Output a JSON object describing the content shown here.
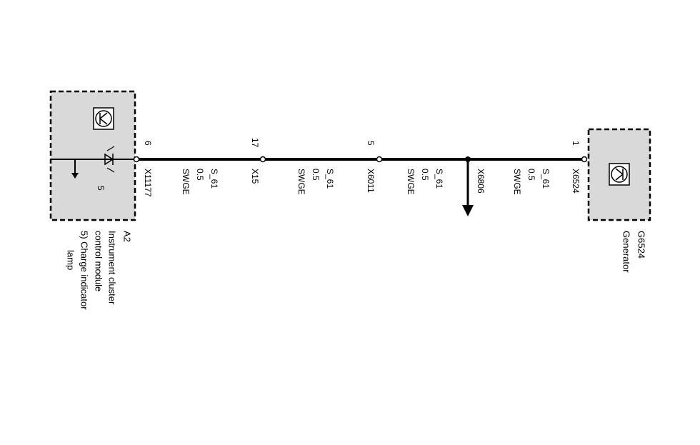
{
  "components": [
    {
      "id": "A2",
      "lines": [
        "Instrument cluster",
        "control module",
        "5) Charge indicator",
        "lamp"
      ],
      "pin_label": "5"
    },
    {
      "id": "G6524",
      "lines": [
        "Generator"
      ]
    }
  ],
  "connectors": [
    {
      "pin": "6",
      "name": "X11177"
    },
    {
      "pin": "17",
      "name": "X15"
    },
    {
      "pin": "5",
      "name": "X6011"
    },
    {
      "name": "X6806"
    },
    {
      "pin": "1",
      "name": "X6524"
    }
  ],
  "wires": [
    {
      "signal": "S_61",
      "size": "0.5",
      "color": "SWGE"
    },
    {
      "signal": "S_61",
      "size": "0.5",
      "color": "SWGE"
    },
    {
      "signal": "S_61",
      "size": "0.5",
      "color": "SWGE"
    },
    {
      "signal": "S_61",
      "size": "0.5",
      "color": "SWGE"
    }
  ]
}
